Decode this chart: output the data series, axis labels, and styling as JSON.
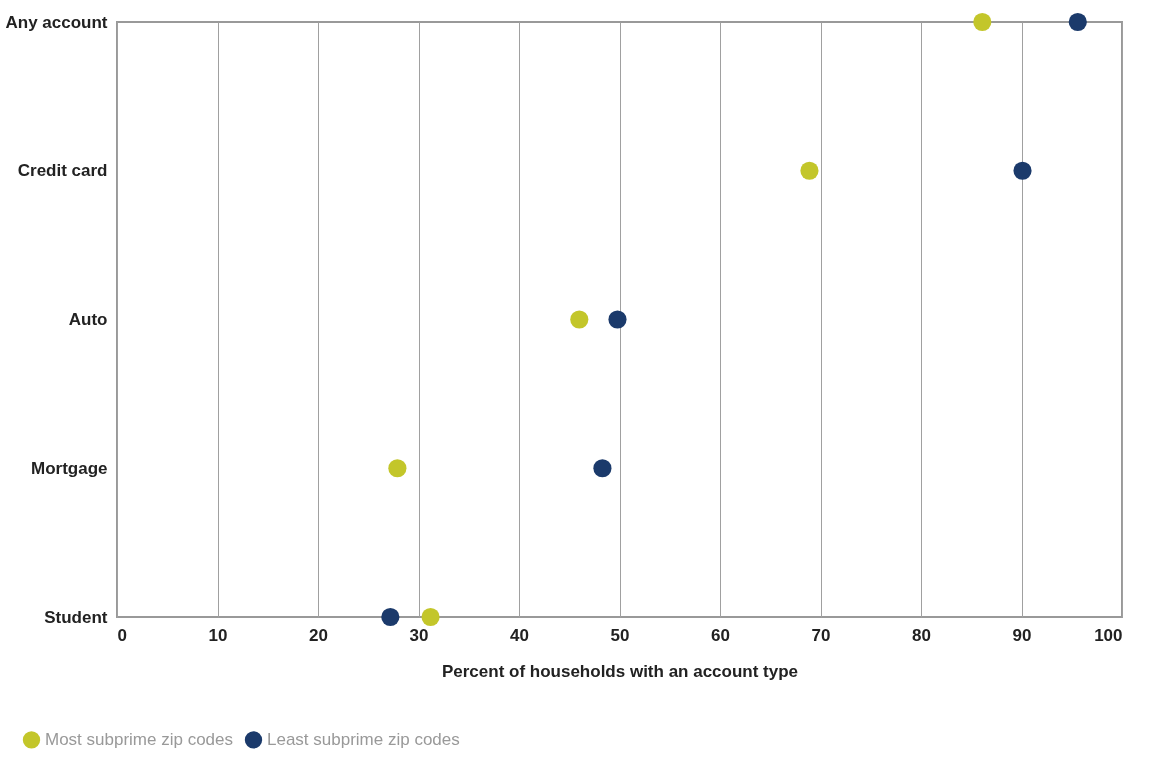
{
  "chart_data": {
    "type": "scatter",
    "orientation": "horizontal",
    "categories": [
      "Any account",
      "Credit card",
      "Auto",
      "Mortgage",
      "Student"
    ],
    "series": [
      {
        "name": "Most subprime zip codes",
        "color": "#c3c62a",
        "values": [
          86.1,
          68.9,
          46.0,
          27.9,
          31.2
        ]
      },
      {
        "name": "Least subprime zip codes",
        "color": "#1b3a6b",
        "values": [
          95.6,
          90.1,
          49.8,
          48.3,
          27.2
        ]
      }
    ],
    "xlim": [
      0,
      100
    ],
    "xticks": [
      0,
      10,
      20,
      30,
      40,
      50,
      60,
      70,
      80,
      90,
      100
    ],
    "xlabel": "Percent of households with an account type",
    "grid": "x",
    "legend": "bottom left",
    "marker": "circle"
  }
}
